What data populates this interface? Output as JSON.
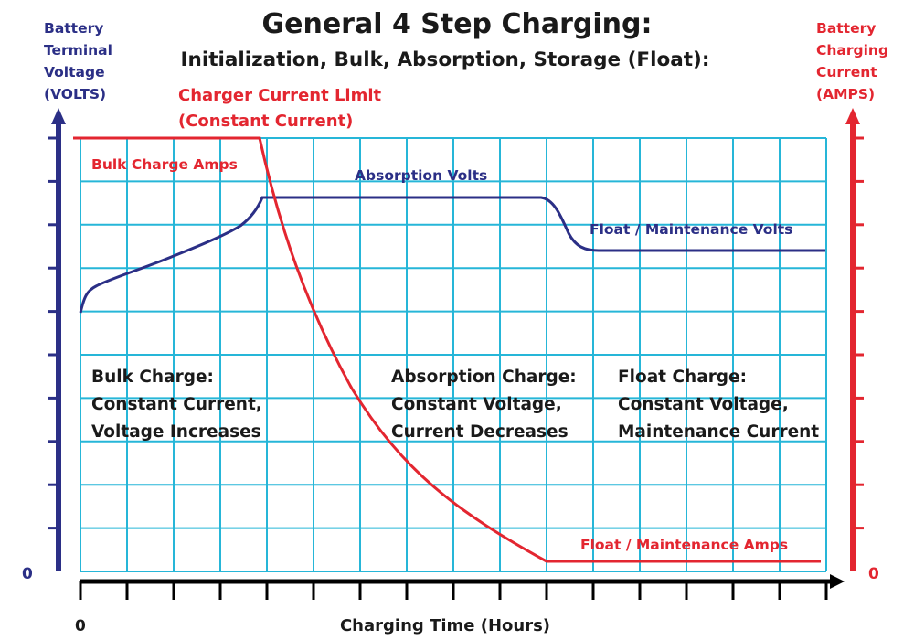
{
  "title": "General 4 Step Charging:",
  "subtitle": "Initialization, Bulk, Absorption, Storage (Float):",
  "left_axis": {
    "label_lines": [
      "Battery",
      "Terminal",
      "Voltage",
      "(VOLTS)"
    ],
    "zero": "0"
  },
  "right_axis": {
    "label_lines": [
      "Battery",
      "Charging",
      "Current",
      "(AMPS)"
    ],
    "zero": "0"
  },
  "x_axis": {
    "label": "Charging Time (Hours)",
    "zero": "0"
  },
  "annotations": {
    "current_limit_lines": [
      "Charger Current Limit",
      "(Constant Current)"
    ],
    "bulk_amps": "Bulk Charge Amps",
    "absorption_volts": "Absorption Volts",
    "float_volts": "Float / Maintenance Volts",
    "float_amps": "Float / Maintenance Amps"
  },
  "stages": {
    "bulk": [
      "Bulk Charge:",
      "Constant Current,",
      "Voltage Increases"
    ],
    "absorption": [
      "Absorption Charge:",
      "Constant Voltage,",
      "Current Decreases"
    ],
    "float": [
      "Float Charge:",
      "Constant Voltage,",
      "Maintenance Current"
    ]
  },
  "colors": {
    "voltage": "#2b2f86",
    "current": "#e32630",
    "grid": "#26b6d8",
    "text": "#1a1a1a",
    "axis": "#000000"
  }
}
